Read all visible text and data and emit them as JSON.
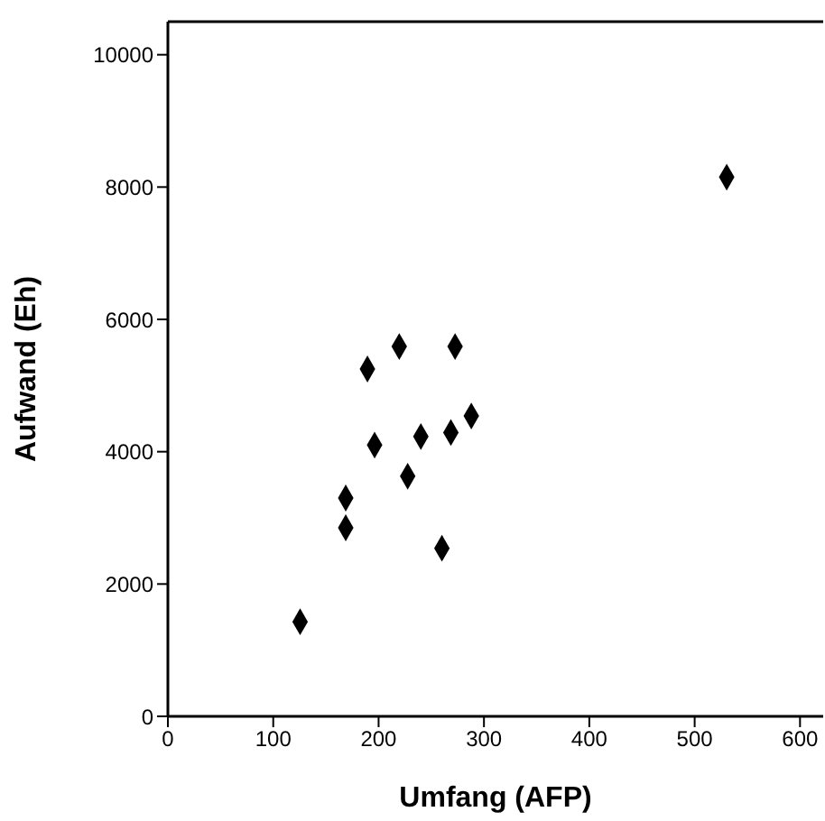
{
  "chart_data": {
    "type": "scatter",
    "xlabel": "Umfang (AFP)",
    "ylabel": "Aufwand (Eh)",
    "x": [
      125.5,
      168.8,
      168.8,
      189.4,
      196.2,
      219.6,
      227.6,
      240.1,
      260.1,
      268.6,
      272.6,
      288,
      530.4
    ],
    "series": [
      {
        "color": "#000000",
        "values": [
          1430,
          2850,
          3300,
          5250,
          4100,
          5590,
          3630,
          4230,
          2540,
          4290,
          5590,
          4540,
          8150
        ]
      }
    ],
    "xlim": [
      0,
      622
    ],
    "xticks": [
      0,
      100,
      200,
      300,
      400,
      500,
      600
    ],
    "ylim": [
      0,
      10500
    ],
    "yticks": [
      0,
      2000,
      4000,
      6000,
      8000,
      10000
    ],
    "marker": "diamond"
  }
}
